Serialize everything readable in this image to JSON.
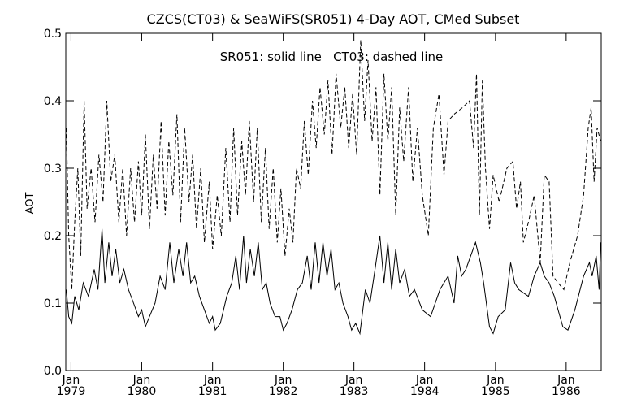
{
  "chart_data": {
    "type": "line",
    "title": "CZCS(CT03) & SeaWiFS(SR051) 4-Day AOT, CMed Subset",
    "annotation": "SR051: solid line   CT03: dashed line",
    "xlabel": "",
    "ylabel": "AOT",
    "xlim": [
      "1978-12-05",
      "1986-07-01"
    ],
    "ylim": [
      0.0,
      0.5
    ],
    "yticks": [
      "0.0",
      "0.1",
      "0.2",
      "0.3",
      "0.4",
      "0.5"
    ],
    "xticks": [
      {
        "date": "1979-01-01",
        "month": "Jan",
        "year": "1979"
      },
      {
        "date": "1980-01-01",
        "month": "Jan",
        "year": "1980"
      },
      {
        "date": "1981-01-01",
        "month": "Jan",
        "year": "1981"
      },
      {
        "date": "1982-01-01",
        "month": "Jan",
        "year": "1982"
      },
      {
        "date": "1983-01-01",
        "month": "Jan",
        "year": "1983"
      },
      {
        "date": "1984-01-01",
        "month": "Jan",
        "year": "1984"
      },
      {
        "date": "1985-01-01",
        "month": "Jan",
        "year": "1985"
      },
      {
        "date": "1986-01-01",
        "month": "Jan",
        "year": "1986"
      }
    ],
    "grid": false,
    "series": [
      {
        "name": "SR051",
        "style": "solid",
        "color": "#000000",
        "points": [
          [
            "1978-12-08",
            0.12
          ],
          [
            "1978-12-20",
            0.08
          ],
          [
            "1979-01-05",
            0.07
          ],
          [
            "1979-01-20",
            0.11
          ],
          [
            "1979-02-10",
            0.09
          ],
          [
            "1979-03-05",
            0.13
          ],
          [
            "1979-04-01",
            0.11
          ],
          [
            "1979-05-01",
            0.15
          ],
          [
            "1979-05-20",
            0.12
          ],
          [
            "1979-06-10",
            0.21
          ],
          [
            "1979-06-25",
            0.13
          ],
          [
            "1979-07-15",
            0.19
          ],
          [
            "1979-08-01",
            0.14
          ],
          [
            "1979-08-20",
            0.18
          ],
          [
            "1979-09-10",
            0.13
          ],
          [
            "1979-10-01",
            0.15
          ],
          [
            "1979-10-25",
            0.12
          ],
          [
            "1979-11-20",
            0.1
          ],
          [
            "1979-12-15",
            0.08
          ],
          [
            "1980-01-01",
            0.09
          ],
          [
            "1980-01-20",
            0.065
          ],
          [
            "1980-02-10",
            0.08
          ],
          [
            "1980-03-10",
            0.1
          ],
          [
            "1980-04-05",
            0.14
          ],
          [
            "1980-05-01",
            0.12
          ],
          [
            "1980-05-25",
            0.19
          ],
          [
            "1980-06-15",
            0.13
          ],
          [
            "1980-07-10",
            0.18
          ],
          [
            "1980-08-01",
            0.14
          ],
          [
            "1980-08-20",
            0.19
          ],
          [
            "1980-09-10",
            0.13
          ],
          [
            "1980-10-01",
            0.14
          ],
          [
            "1980-10-25",
            0.11
          ],
          [
            "1980-11-20",
            0.09
          ],
          [
            "1980-12-15",
            0.07
          ],
          [
            "1981-01-01",
            0.08
          ],
          [
            "1981-01-15",
            0.06
          ],
          [
            "1981-02-10",
            0.07
          ],
          [
            "1981-03-15",
            0.11
          ],
          [
            "1981-04-10",
            0.13
          ],
          [
            "1981-05-01",
            0.17
          ],
          [
            "1981-05-20",
            0.12
          ],
          [
            "1981-06-10",
            0.2
          ],
          [
            "1981-06-25",
            0.13
          ],
          [
            "1981-07-15",
            0.18
          ],
          [
            "1981-08-05",
            0.14
          ],
          [
            "1981-08-25",
            0.19
          ],
          [
            "1981-09-15",
            0.12
          ],
          [
            "1981-10-05",
            0.13
          ],
          [
            "1981-10-25",
            0.1
          ],
          [
            "1981-11-20",
            0.08
          ],
          [
            "1981-12-15",
            0.08
          ],
          [
            "1982-01-01",
            0.06
          ],
          [
            "1982-01-20",
            0.07
          ],
          [
            "1982-02-15",
            0.09
          ],
          [
            "1982-03-15",
            0.12
          ],
          [
            "1982-04-10",
            0.13
          ],
          [
            "1982-05-05",
            0.17
          ],
          [
            "1982-05-25",
            0.12
          ],
          [
            "1982-06-15",
            0.19
          ],
          [
            "1982-07-05",
            0.13
          ],
          [
            "1982-07-25",
            0.19
          ],
          [
            "1982-08-15",
            0.14
          ],
          [
            "1982-09-05",
            0.18
          ],
          [
            "1982-09-25",
            0.12
          ],
          [
            "1982-10-15",
            0.13
          ],
          [
            "1982-11-05",
            0.1
          ],
          [
            "1982-12-01",
            0.08
          ],
          [
            "1982-12-20",
            0.06
          ],
          [
            "1983-01-10",
            0.07
          ],
          [
            "1983-02-01",
            0.055
          ],
          [
            "1983-03-01",
            0.12
          ],
          [
            "1983-03-25",
            0.1
          ],
          [
            "1983-04-20",
            0.15
          ],
          [
            "1983-05-15",
            0.2
          ],
          [
            "1983-06-05",
            0.13
          ],
          [
            "1983-06-25",
            0.19
          ],
          [
            "1983-07-15",
            0.12
          ],
          [
            "1983-08-05",
            0.18
          ],
          [
            "1983-08-25",
            0.13
          ],
          [
            "1983-09-20",
            0.15
          ],
          [
            "1983-10-15",
            0.11
          ],
          [
            "1983-11-10",
            0.12
          ],
          [
            "1983-12-20",
            0.09
          ],
          [
            "1984-02-01",
            0.08
          ],
          [
            "1984-03-20",
            0.12
          ],
          [
            "1984-05-01",
            0.14
          ],
          [
            "1984-06-01",
            0.1
          ],
          [
            "1984-06-20",
            0.17
          ],
          [
            "1984-07-10",
            0.14
          ],
          [
            "1984-08-01",
            0.15
          ],
          [
            "1984-09-20",
            0.19
          ],
          [
            "1984-10-15",
            0.16
          ],
          [
            "1984-11-01",
            0.13
          ],
          [
            "1984-12-01",
            0.065
          ],
          [
            "1984-12-20",
            0.055
          ],
          [
            "1985-01-15",
            0.08
          ],
          [
            "1985-02-20",
            0.09
          ],
          [
            "1985-03-20",
            0.16
          ],
          [
            "1985-04-10",
            0.13
          ],
          [
            "1985-05-01",
            0.12
          ],
          [
            "1985-06-20",
            0.11
          ],
          [
            "1985-07-20",
            0.14
          ],
          [
            "1985-08-20",
            0.16
          ],
          [
            "1985-09-10",
            0.14
          ],
          [
            "1985-10-05",
            0.13
          ],
          [
            "1985-11-01",
            0.11
          ],
          [
            "1985-11-20",
            0.09
          ],
          [
            "1985-12-15",
            0.065
          ],
          [
            "1986-01-10",
            0.06
          ],
          [
            "1986-02-15",
            0.09
          ],
          [
            "1986-04-01",
            0.14
          ],
          [
            "1986-05-01",
            0.16
          ],
          [
            "1986-05-15",
            0.14
          ],
          [
            "1986-06-05",
            0.17
          ],
          [
            "1986-06-20",
            0.12
          ],
          [
            "1986-06-28",
            0.19
          ]
        ]
      },
      {
        "name": "CT03",
        "style": "dashed",
        "color": "#000000",
        "points": [
          [
            "1978-12-08",
            0.36
          ],
          [
            "1978-12-20",
            0.2
          ],
          [
            "1979-01-05",
            0.12
          ],
          [
            "1979-01-20",
            0.22
          ],
          [
            "1979-02-05",
            0.3
          ],
          [
            "1979-02-20",
            0.17
          ],
          [
            "1979-03-10",
            0.4
          ],
          [
            "1979-03-25",
            0.24
          ],
          [
            "1979-04-15",
            0.3
          ],
          [
            "1979-05-05",
            0.22
          ],
          [
            "1979-05-25",
            0.32
          ],
          [
            "1979-06-15",
            0.25
          ],
          [
            "1979-07-05",
            0.4
          ],
          [
            "1979-07-25",
            0.28
          ],
          [
            "1979-08-15",
            0.32
          ],
          [
            "1979-09-05",
            0.22
          ],
          [
            "1979-09-25",
            0.3
          ],
          [
            "1979-10-15",
            0.2
          ],
          [
            "1979-11-05",
            0.3
          ],
          [
            "1979-11-25",
            0.22
          ],
          [
            "1979-12-15",
            0.31
          ],
          [
            "1980-01-01",
            0.23
          ],
          [
            "1980-01-20",
            0.35
          ],
          [
            "1980-02-10",
            0.21
          ],
          [
            "1980-03-01",
            0.32
          ],
          [
            "1980-03-20",
            0.24
          ],
          [
            "1980-04-10",
            0.37
          ],
          [
            "1980-05-01",
            0.23
          ],
          [
            "1980-05-20",
            0.34
          ],
          [
            "1980-06-10",
            0.26
          ],
          [
            "1980-07-01",
            0.38
          ],
          [
            "1980-07-20",
            0.22
          ],
          [
            "1980-08-10",
            0.36
          ],
          [
            "1980-09-01",
            0.25
          ],
          [
            "1980-09-20",
            0.32
          ],
          [
            "1980-10-10",
            0.21
          ],
          [
            "1980-11-01",
            0.3
          ],
          [
            "1980-11-20",
            0.19
          ],
          [
            "1980-12-15",
            0.28
          ],
          [
            "1981-01-01",
            0.18
          ],
          [
            "1981-01-25",
            0.26
          ],
          [
            "1981-02-15",
            0.2
          ],
          [
            "1981-03-10",
            0.33
          ],
          [
            "1981-04-01",
            0.22
          ],
          [
            "1981-04-20",
            0.36
          ],
          [
            "1981-05-10",
            0.23
          ],
          [
            "1981-06-01",
            0.34
          ],
          [
            "1981-06-20",
            0.26
          ],
          [
            "1981-07-10",
            0.37
          ],
          [
            "1981-08-01",
            0.25
          ],
          [
            "1981-08-20",
            0.36
          ],
          [
            "1981-09-10",
            0.22
          ],
          [
            "1981-10-01",
            0.33
          ],
          [
            "1981-10-20",
            0.21
          ],
          [
            "1981-11-10",
            0.3
          ],
          [
            "1981-12-01",
            0.19
          ],
          [
            "1981-12-20",
            0.27
          ],
          [
            "1982-01-10",
            0.17
          ],
          [
            "1982-02-01",
            0.24
          ],
          [
            "1982-02-20",
            0.19
          ],
          [
            "1982-03-10",
            0.3
          ],
          [
            "1982-04-01",
            0.27
          ],
          [
            "1982-04-20",
            0.37
          ],
          [
            "1982-05-10",
            0.29
          ],
          [
            "1982-06-01",
            0.4
          ],
          [
            "1982-06-20",
            0.33
          ],
          [
            "1982-07-10",
            0.42
          ],
          [
            "1982-08-01",
            0.35
          ],
          [
            "1982-08-20",
            0.43
          ],
          [
            "1982-09-10",
            0.32
          ],
          [
            "1982-10-01",
            0.44
          ],
          [
            "1982-10-25",
            0.36
          ],
          [
            "1982-11-15",
            0.42
          ],
          [
            "1982-12-05",
            0.33
          ],
          [
            "1982-12-25",
            0.41
          ],
          [
            "1983-01-15",
            0.32
          ],
          [
            "1983-02-05",
            0.49
          ],
          [
            "1983-02-25",
            0.37
          ],
          [
            "1983-03-15",
            0.46
          ],
          [
            "1983-04-05",
            0.34
          ],
          [
            "1983-04-25",
            0.42
          ],
          [
            "1983-05-15",
            0.26
          ],
          [
            "1983-06-05",
            0.44
          ],
          [
            "1983-06-25",
            0.34
          ],
          [
            "1983-07-15",
            0.42
          ],
          [
            "1983-08-05",
            0.23
          ],
          [
            "1983-08-25",
            0.39
          ],
          [
            "1983-09-15",
            0.31
          ],
          [
            "1983-10-10",
            0.42
          ],
          [
            "1983-11-01",
            0.28
          ],
          [
            "1983-11-25",
            0.36
          ],
          [
            "1983-12-20",
            0.26
          ],
          [
            "1984-01-20",
            0.2
          ],
          [
            "1984-02-15",
            0.36
          ],
          [
            "1984-03-15",
            0.41
          ],
          [
            "1984-04-10",
            0.29
          ],
          [
            "1984-05-01",
            0.37
          ],
          [
            "1984-06-01",
            0.38
          ],
          [
            "1984-07-15",
            0.39
          ],
          [
            "1984-08-20",
            0.4
          ],
          [
            "1984-09-10",
            0.33
          ],
          [
            "1984-09-25",
            0.44
          ],
          [
            "1984-10-10",
            0.23
          ],
          [
            "1984-10-25",
            0.43
          ],
          [
            "1984-11-10",
            0.3
          ],
          [
            "1984-12-01",
            0.21
          ],
          [
            "1984-12-20",
            0.29
          ],
          [
            "1985-01-20",
            0.25
          ],
          [
            "1985-03-01",
            0.3
          ],
          [
            "1985-04-01",
            0.31
          ],
          [
            "1985-04-20",
            0.24
          ],
          [
            "1985-05-10",
            0.28
          ],
          [
            "1985-05-25",
            0.19
          ],
          [
            "1985-06-20",
            0.22
          ],
          [
            "1985-07-20",
            0.26
          ],
          [
            "1985-08-20",
            0.16
          ],
          [
            "1985-09-10",
            0.29
          ],
          [
            "1985-10-05",
            0.28
          ],
          [
            "1985-10-25",
            0.14
          ],
          [
            "1985-11-20",
            0.13
          ],
          [
            "1985-12-20",
            0.12
          ],
          [
            "1986-01-20",
            0.16
          ],
          [
            "1986-03-01",
            0.2
          ],
          [
            "1986-04-01",
            0.26
          ],
          [
            "1986-04-25",
            0.36
          ],
          [
            "1986-05-10",
            0.39
          ],
          [
            "1986-05-25",
            0.28
          ],
          [
            "1986-06-10",
            0.36
          ],
          [
            "1986-06-28",
            0.34
          ]
        ]
      }
    ]
  }
}
